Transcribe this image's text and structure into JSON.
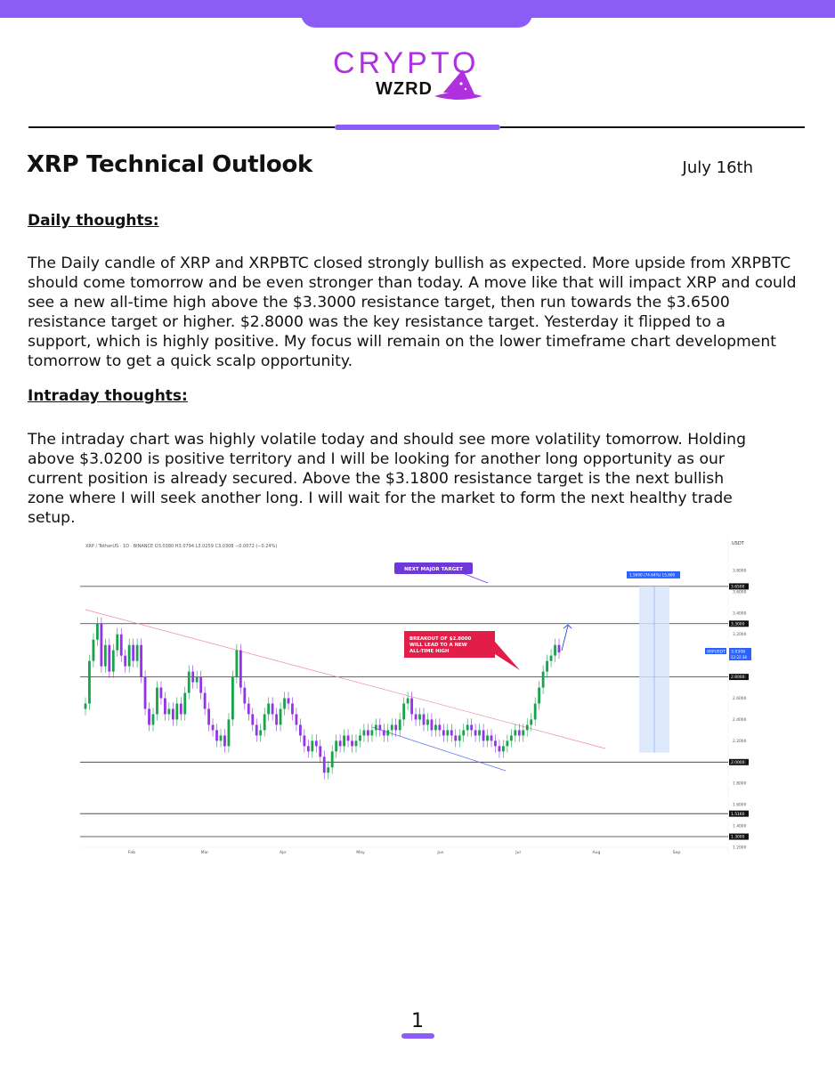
{
  "brand": {
    "name_top": "CRYPTO",
    "name_bottom": "WZRD",
    "accent": "#8b5cf6"
  },
  "document": {
    "title": "XRP Technical Outlook",
    "date": "July 16th",
    "page_number": "1"
  },
  "daily": {
    "heading": "Daily thoughts:",
    "lines": [
      "The Daily candle of XRP and XRPBTC closed strongly bullish as expected. More upside from XRPBTC",
      "should come tomorrow and be even stronger than today. A move like that will impact XRP and could",
      "see a new all-time high above the $3.3000 resistance target, then run towards the $3.6500",
      "resistance target or higher. $2.8000 was the key resistance target. Yesterday it flipped to a",
      "support, which is highly positive. My focus will remain on the lower timeframe chart development",
      "tomorrow to get a quick scalp opportunity."
    ]
  },
  "intraday": {
    "heading": "Intraday thoughts:",
    "lines": [
      "The intraday chart was highly volatile today and should see more volatility tomorrow. Holding",
      "above $3.0200 is positive territory and I will be looking for another long opportunity as our",
      "current position is already secured. Above the $3.1800 resistance target is the next bullish",
      "zone where I will seek another long. I will wait for the market to form the next healthy trade",
      "setup."
    ]
  },
  "chart_data": {
    "type": "line",
    "title": "XRP / TetherUS · 1D · BINANCE  O3.0380 H3.0794 L3.0259 C3.0308 −0.0072 (−0.24%)",
    "currency": "USDT",
    "ylim": [
      1.2,
      3.9
    ],
    "y_ticks": [
      3.8,
      3.6,
      3.4,
      3.2,
      3.0,
      2.8,
      2.6,
      2.4,
      2.2,
      2.0,
      1.8,
      1.6,
      1.4,
      1.2
    ],
    "x_ticks": [
      "Feb",
      "Mar",
      "Apr",
      "May",
      "Jun",
      "Jul",
      "Aug",
      "Sep"
    ],
    "levels": [
      {
        "label": "3.6500",
        "value": 3.65
      },
      {
        "label": "3.3000",
        "value": 3.3
      },
      {
        "label": "2.8000",
        "value": 2.8
      },
      {
        "label": "2.0000",
        "value": 2.0
      },
      {
        "label": "1.5160",
        "value": 1.516
      },
      {
        "label": "1.3000",
        "value": 1.3
      }
    ],
    "current_price": {
      "symbol": "XRPUSDT",
      "value": "3.0308",
      "countdown": "22:22:38"
    },
    "annotations": {
      "next_target": "NEXT MAJOR TARGET",
      "breakout": [
        "BREAKOUT OF $2.8000",
        "WILL LEAD TO A NEW",
        "ALL-TIME HIGH"
      ],
      "projection": "1.5600 (74.64%) 15,600"
    },
    "series": [
      {
        "values": [
          2.55,
          2.95,
          3.15,
          3.3,
          2.9,
          3.1,
          2.85,
          3.05,
          3.2,
          3.0,
          2.9,
          3.1,
          2.95,
          3.1,
          2.8,
          2.5,
          2.35,
          2.45,
          2.7,
          2.6,
          2.45,
          2.5,
          2.4,
          2.55,
          2.45,
          2.65,
          2.85,
          2.75,
          2.8,
          2.65,
          2.5,
          2.35,
          2.3,
          2.2,
          2.25,
          2.15,
          2.4,
          2.8,
          3.05,
          2.7,
          2.55,
          2.45,
          2.35,
          2.25,
          2.3,
          2.45,
          2.55,
          2.45,
          2.35,
          2.5,
          2.6,
          2.55,
          2.45,
          2.35,
          2.25,
          2.15,
          2.1,
          2.2,
          2.15,
          2.05,
          1.9,
          1.95,
          2.1,
          2.2,
          2.15,
          2.25,
          2.2,
          2.15,
          2.2,
          2.25,
          2.3,
          2.25,
          2.3,
          2.35,
          2.3,
          2.25,
          2.3,
          2.35,
          2.3,
          2.4,
          2.55,
          2.6,
          2.45,
          2.4,
          2.45,
          2.35,
          2.4,
          2.3,
          2.35,
          2.3,
          2.25,
          2.3,
          2.25,
          2.2,
          2.25,
          2.3,
          2.35,
          2.3,
          2.25,
          2.3,
          2.2,
          2.25,
          2.2,
          2.15,
          2.1,
          2.15,
          2.2,
          2.25,
          2.3,
          2.25,
          2.3,
          2.35,
          2.4,
          2.55,
          2.7,
          2.85,
          2.95,
          3.0,
          3.1,
          3.03
        ]
      }
    ]
  }
}
